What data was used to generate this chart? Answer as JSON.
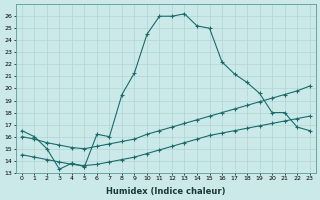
{
  "xlabel": "Humidex (Indice chaleur)",
  "ylabel": "",
  "background_color": "#cce9e9",
  "grid_color": "#b0d4d4",
  "line_color": "#1a6b6b",
  "xlim": [
    -0.5,
    23.5
  ],
  "ylim": [
    13,
    27
  ],
  "xticks": [
    0,
    1,
    2,
    3,
    4,
    5,
    6,
    7,
    8,
    9,
    10,
    11,
    12,
    13,
    14,
    15,
    16,
    17,
    18,
    19,
    20,
    21,
    22,
    23
  ],
  "yticks": [
    13,
    14,
    15,
    16,
    17,
    18,
    19,
    20,
    21,
    22,
    23,
    24,
    25,
    26
  ],
  "series": [
    {
      "x": [
        0,
        1,
        2,
        3,
        4,
        5,
        6,
        7,
        8,
        9,
        10,
        11,
        12,
        13,
        14,
        15,
        16,
        17,
        18,
        19,
        20,
        21,
        22,
        23
      ],
      "y": [
        16.5,
        16.0,
        15.0,
        13.3,
        13.8,
        13.5,
        16.2,
        16.0,
        19.5,
        21.3,
        24.5,
        26.0,
        26.0,
        26.2,
        25.2,
        25.0,
        22.2,
        21.2,
        20.5,
        19.6,
        18.0,
        18.0,
        16.8,
        16.5
      ]
    },
    {
      "x": [
        0,
        1,
        2,
        3,
        4,
        5,
        6,
        7,
        8,
        9,
        10,
        11,
        12,
        13,
        14,
        15,
        16,
        17,
        18,
        19,
        20,
        21,
        22,
        23
      ],
      "y": [
        16.0,
        15.8,
        15.5,
        15.3,
        15.1,
        15.0,
        15.2,
        15.4,
        15.6,
        15.8,
        16.2,
        16.5,
        16.8,
        17.1,
        17.4,
        17.7,
        18.0,
        18.3,
        18.6,
        18.9,
        19.2,
        19.5,
        19.8,
        20.2
      ]
    },
    {
      "x": [
        0,
        1,
        2,
        3,
        4,
        5,
        6,
        7,
        8,
        9,
        10,
        11,
        12,
        13,
        14,
        15,
        16,
        17,
        18,
        19,
        20,
        21,
        22,
        23
      ],
      "y": [
        14.5,
        14.3,
        14.1,
        13.9,
        13.7,
        13.6,
        13.7,
        13.9,
        14.1,
        14.3,
        14.6,
        14.9,
        15.2,
        15.5,
        15.8,
        16.1,
        16.3,
        16.5,
        16.7,
        16.9,
        17.1,
        17.3,
        17.5,
        17.7
      ]
    }
  ]
}
